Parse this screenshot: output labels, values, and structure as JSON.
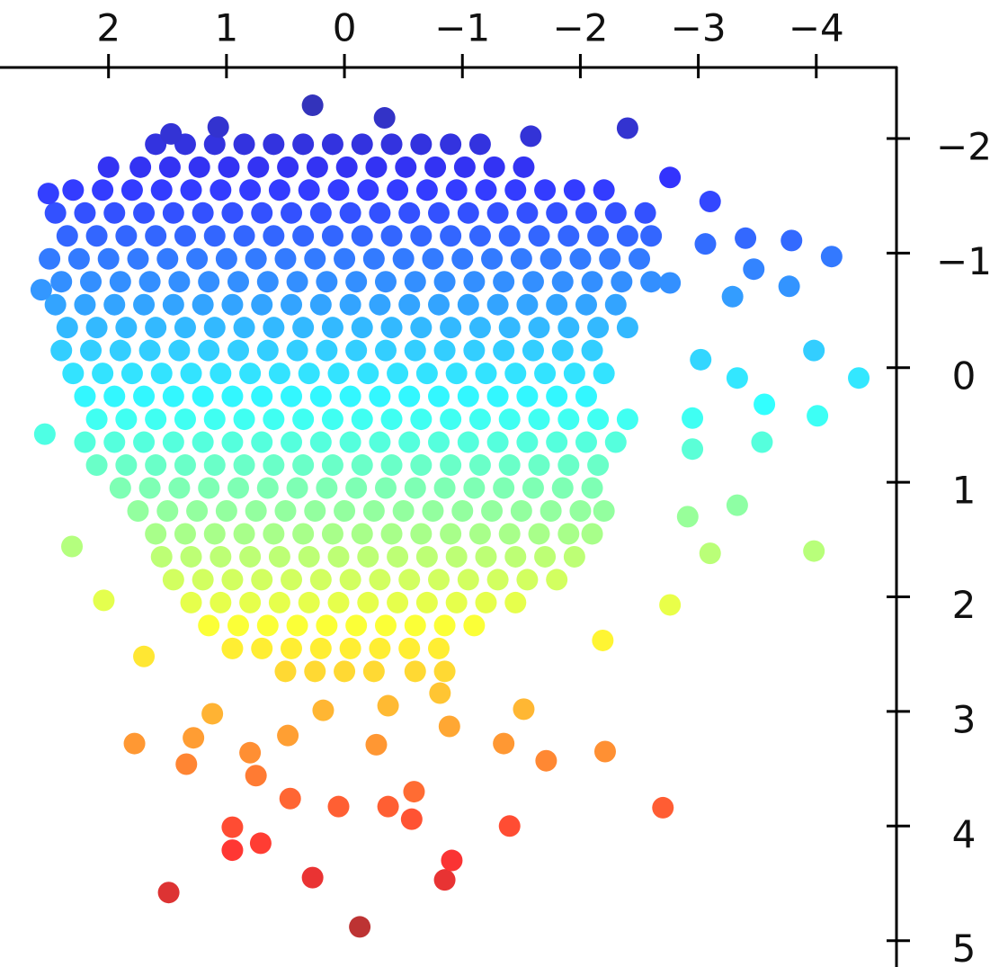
{
  "chart_data": {
    "type": "scatter",
    "colormap": "jet",
    "xlim": [
      2.92,
      -4.68
    ],
    "ylim": [
      -2.62,
      5.23
    ],
    "xticks": [
      {
        "value": 2,
        "label": "2"
      },
      {
        "value": 1,
        "label": "1"
      },
      {
        "value": 0,
        "label": "0"
      },
      {
        "value": -1,
        "label": "−1"
      },
      {
        "value": -2,
        "label": "−2"
      },
      {
        "value": -3,
        "label": "−3"
      },
      {
        "value": -4,
        "label": "−4"
      }
    ],
    "yticks": [
      {
        "value": -2,
        "label": "−2"
      },
      {
        "value": -1,
        "label": "−1"
      },
      0,
      1,
      2,
      3,
      4,
      5
    ],
    "x": [
      1.6,
      1.35,
      1.1,
      0.85,
      0.6,
      0.35,
      0.1,
      -0.15,
      -0.4,
      -0.65,
      -0.9,
      -1.15,
      2.0,
      1.73,
      1.48,
      1.23,
      0.98,
      0.73,
      0.48,
      0.23,
      -0.02,
      -0.27,
      -0.52,
      -0.77,
      -1.02,
      -1.27,
      -1.52,
      2.3,
      2.05,
      1.8,
      1.55,
      1.3,
      1.05,
      0.8,
      0.55,
      0.3,
      0.05,
      -0.2,
      -0.45,
      -0.7,
      -0.95,
      -1.2,
      -1.45,
      -1.7,
      -1.95,
      -2.2,
      2.45,
      2.2,
      1.95,
      1.7,
      1.45,
      1.2,
      0.95,
      0.7,
      0.45,
      0.2,
      -0.05,
      -0.3,
      -0.55,
      -0.8,
      -1.05,
      -1.3,
      -1.55,
      -1.8,
      -2.05,
      -2.3,
      -2.55,
      2.35,
      2.1,
      1.85,
      1.6,
      1.35,
      1.1,
      0.85,
      0.6,
      0.35,
      0.1,
      -0.15,
      -0.4,
      -0.65,
      -0.9,
      -1.15,
      -1.4,
      -1.65,
      -1.9,
      -2.15,
      -2.4,
      -2.6,
      2.5,
      2.25,
      2.0,
      1.75,
      1.5,
      1.25,
      1.0,
      0.75,
      0.5,
      0.25,
      0,
      -0.25,
      -0.5,
      -0.75,
      -1.0,
      -1.25,
      -1.5,
      -1.75,
      -2.0,
      -2.25,
      -2.5,
      2.4,
      2.15,
      1.9,
      1.65,
      1.4,
      1.15,
      0.9,
      0.65,
      0.4,
      0.15,
      -0.1,
      -0.35,
      -0.6,
      -0.85,
      -1.1,
      -1.35,
      -1.6,
      -1.85,
      -2.1,
      -2.35,
      -2.6,
      2.45,
      2.2,
      1.95,
      1.7,
      1.45,
      1.2,
      0.95,
      0.7,
      0.45,
      0.2,
      -0.05,
      -0.3,
      -0.55,
      -0.8,
      -1.05,
      -1.3,
      -1.55,
      -1.8,
      -2.05,
      -2.3,
      2.35,
      2.1,
      1.85,
      1.6,
      1.35,
      1.1,
      0.85,
      0.6,
      0.35,
      0.1,
      -0.15,
      -0.4,
      -0.65,
      -0.9,
      -1.15,
      -1.4,
      -1.65,
      -1.9,
      -2.15,
      -2.4,
      2.4,
      2.15,
      1.9,
      1.65,
      1.4,
      1.15,
      0.9,
      0.65,
      0.4,
      0.15,
      -0.1,
      -0.35,
      -0.6,
      -0.85,
      -1.1,
      -1.35,
      -1.6,
      -1.85,
      -2.1,
      2.3,
      2.05,
      1.8,
      1.55,
      1.3,
      1.05,
      0.8,
      0.55,
      0.3,
      0.05,
      -0.2,
      -0.45,
      -0.7,
      -0.95,
      -1.2,
      -1.45,
      -1.7,
      -1.95,
      -2.2,
      2.2,
      1.95,
      1.7,
      1.45,
      1.2,
      0.95,
      0.7,
      0.45,
      0.2,
      -0.05,
      -0.3,
      -0.55,
      -0.8,
      -1.05,
      -1.3,
      -1.55,
      -1.8,
      -2.05,
      2.1,
      1.85,
      1.6,
      1.35,
      1.1,
      0.85,
      0.6,
      0.35,
      0.1,
      -0.15,
      -0.4,
      -0.65,
      -0.9,
      -1.15,
      -1.4,
      -1.65,
      -1.9,
      -2.15,
      -2.4,
      2.2,
      1.95,
      1.7,
      1.45,
      1.2,
      0.95,
      0.7,
      0.45,
      0.2,
      -0.05,
      -0.3,
      -0.55,
      -0.8,
      -1.05,
      -1.3,
      -1.55,
      -1.8,
      -2.05,
      -2.3,
      2.1,
      1.85,
      1.6,
      1.35,
      1.1,
      0.85,
      0.6,
      0.35,
      0.1,
      -0.15,
      -0.4,
      -0.65,
      -0.9,
      -1.15,
      -1.4,
      -1.65,
      -1.9,
      -2.15,
      1.9,
      1.65,
      1.4,
      1.15,
      0.9,
      0.65,
      0.4,
      0.15,
      -0.1,
      -0.35,
      -0.6,
      -0.85,
      -1.1,
      -1.35,
      -1.6,
      -1.85,
      -2.1,
      1.75,
      1.5,
      1.25,
      1.0,
      0.75,
      0.5,
      0.25,
      0,
      -0.25,
      -0.5,
      -0.75,
      -1.0,
      -1.25,
      -1.5,
      -1.75,
      -2.0,
      -2.2,
      1.6,
      1.35,
      1.1,
      0.85,
      0.6,
      0.35,
      0.1,
      -0.15,
      -0.4,
      -0.65,
      -0.9,
      -1.15,
      -1.4,
      -1.65,
      -1.9,
      -2.1,
      1.55,
      1.3,
      1.05,
      0.8,
      0.55,
      0.3,
      0.05,
      -0.2,
      -0.45,
      -0.7,
      -0.95,
      -1.2,
      -1.45,
      -1.7,
      -1.95,
      1.45,
      1.2,
      0.95,
      0.7,
      0.45,
      0.2,
      -0.05,
      -0.3,
      -0.55,
      -0.8,
      -1.05,
      -1.3,
      -1.55,
      -1.8,
      1.3,
      1.05,
      0.8,
      0.55,
      0.3,
      0.05,
      -0.2,
      -0.45,
      -0.7,
      -0.95,
      -1.2,
      -1.45,
      1.15,
      0.9,
      0.65,
      0.4,
      0.15,
      -0.1,
      -0.35,
      -0.6,
      -0.85,
      -1.1,
      0.95,
      0.7,
      0.45,
      0.2,
      -0.05,
      -0.3,
      -0.55,
      -0.8,
      0.5,
      0.25,
      0,
      -0.25,
      -0.6,
      -0.85,
      0.27,
      1.07,
      1.47,
      -0.34,
      -2.4,
      -1.58,
      2.51,
      2.57,
      -2.76,
      -3.1,
      -3.06,
      -3.4,
      -3.79,
      -4.13,
      -3.77,
      -3.47,
      -3.29,
      -2.76,
      -3.98,
      -4.36,
      -4.01,
      -3.56,
      -3.54,
      -3.33,
      -3.02,
      -2.95,
      -2.95,
      -3.33,
      -2.91,
      -3.1,
      -3.98,
      -2.76,
      2.54,
      2.31,
      2.04,
      1.7,
      -2.19,
      1.78,
      1.34,
      1.12,
      1.28,
      0.8,
      0.75,
      0.46,
      0.05,
      -0.37,
      -0.59,
      -0.57,
      -1.4,
      -2.7,
      -2.21,
      -1.71,
      -1.35,
      -1.52,
      -0.89,
      -0.27,
      0.48,
      0.95,
      0.95,
      0.71,
      1.49,
      0.27,
      -0.85,
      -0.91,
      -0.13,
      0.18,
      -0.37,
      -0.81
    ],
    "values": [
      -1.95,
      -1.95,
      -1.95,
      -1.95,
      -1.95,
      -1.95,
      -1.95,
      -1.95,
      -1.95,
      -1.95,
      -1.95,
      -1.95,
      -1.75,
      -1.75,
      -1.75,
      -1.75,
      -1.75,
      -1.75,
      -1.75,
      -1.75,
      -1.75,
      -1.75,
      -1.75,
      -1.75,
      -1.75,
      -1.75,
      -1.75,
      -1.55,
      -1.55,
      -1.55,
      -1.55,
      -1.55,
      -1.55,
      -1.55,
      -1.55,
      -1.55,
      -1.55,
      -1.55,
      -1.55,
      -1.55,
      -1.55,
      -1.55,
      -1.55,
      -1.55,
      -1.55,
      -1.55,
      -1.35,
      -1.35,
      -1.35,
      -1.35,
      -1.35,
      -1.35,
      -1.35,
      -1.35,
      -1.35,
      -1.35,
      -1.35,
      -1.35,
      -1.35,
      -1.35,
      -1.35,
      -1.35,
      -1.35,
      -1.35,
      -1.35,
      -1.35,
      -1.35,
      -1.15,
      -1.15,
      -1.15,
      -1.15,
      -1.15,
      -1.15,
      -1.15,
      -1.15,
      -1.15,
      -1.15,
      -1.15,
      -1.15,
      -1.15,
      -1.15,
      -1.15,
      -1.15,
      -1.15,
      -1.15,
      -1.15,
      -1.15,
      -1.15,
      -0.95,
      -0.95,
      -0.95,
      -0.95,
      -0.95,
      -0.95,
      -0.95,
      -0.95,
      -0.95,
      -0.95,
      -0.95,
      -0.95,
      -0.95,
      -0.95,
      -0.95,
      -0.95,
      -0.95,
      -0.95,
      -0.95,
      -0.95,
      -0.95,
      -0.75,
      -0.75,
      -0.75,
      -0.75,
      -0.75,
      -0.75,
      -0.75,
      -0.75,
      -0.75,
      -0.75,
      -0.75,
      -0.75,
      -0.75,
      -0.75,
      -0.75,
      -0.75,
      -0.75,
      -0.75,
      -0.75,
      -0.75,
      -0.75,
      -0.55,
      -0.55,
      -0.55,
      -0.55,
      -0.55,
      -0.55,
      -0.55,
      -0.55,
      -0.55,
      -0.55,
      -0.55,
      -0.55,
      -0.55,
      -0.55,
      -0.55,
      -0.55,
      -0.55,
      -0.55,
      -0.55,
      -0.55,
      -0.35,
      -0.35,
      -0.35,
      -0.35,
      -0.35,
      -0.35,
      -0.35,
      -0.35,
      -0.35,
      -0.35,
      -0.35,
      -0.35,
      -0.35,
      -0.35,
      -0.35,
      -0.35,
      -0.35,
      -0.35,
      -0.35,
      -0.35,
      -0.15,
      -0.15,
      -0.15,
      -0.15,
      -0.15,
      -0.15,
      -0.15,
      -0.15,
      -0.15,
      -0.15,
      -0.15,
      -0.15,
      -0.15,
      -0.15,
      -0.15,
      -0.15,
      -0.15,
      -0.15,
      -0.15,
      0.05,
      0.05,
      0.05,
      0.05,
      0.05,
      0.05,
      0.05,
      0.05,
      0.05,
      0.05,
      0.05,
      0.05,
      0.05,
      0.05,
      0.05,
      0.05,
      0.05,
      0.05,
      0.05,
      0.25,
      0.25,
      0.25,
      0.25,
      0.25,
      0.25,
      0.25,
      0.25,
      0.25,
      0.25,
      0.25,
      0.25,
      0.25,
      0.25,
      0.25,
      0.25,
      0.25,
      0.25,
      0.45,
      0.45,
      0.45,
      0.45,
      0.45,
      0.45,
      0.45,
      0.45,
      0.45,
      0.45,
      0.45,
      0.45,
      0.45,
      0.45,
      0.45,
      0.45,
      0.45,
      0.45,
      0.45,
      0.65,
      0.65,
      0.65,
      0.65,
      0.65,
      0.65,
      0.65,
      0.65,
      0.65,
      0.65,
      0.65,
      0.65,
      0.65,
      0.65,
      0.65,
      0.65,
      0.65,
      0.65,
      0.65,
      0.85,
      0.85,
      0.85,
      0.85,
      0.85,
      0.85,
      0.85,
      0.85,
      0.85,
      0.85,
      0.85,
      0.85,
      0.85,
      0.85,
      0.85,
      0.85,
      0.85,
      0.85,
      1.05,
      1.05,
      1.05,
      1.05,
      1.05,
      1.05,
      1.05,
      1.05,
      1.05,
      1.05,
      1.05,
      1.05,
      1.05,
      1.05,
      1.05,
      1.05,
      1.05,
      1.25,
      1.25,
      1.25,
      1.25,
      1.25,
      1.25,
      1.25,
      1.25,
      1.25,
      1.25,
      1.25,
      1.25,
      1.25,
      1.25,
      1.25,
      1.25,
      1.25,
      1.45,
      1.45,
      1.45,
      1.45,
      1.45,
      1.45,
      1.45,
      1.45,
      1.45,
      1.45,
      1.45,
      1.45,
      1.45,
      1.45,
      1.45,
      1.45,
      1.65,
      1.65,
      1.65,
      1.65,
      1.65,
      1.65,
      1.65,
      1.65,
      1.65,
      1.65,
      1.65,
      1.65,
      1.65,
      1.65,
      1.65,
      1.85,
      1.85,
      1.85,
      1.85,
      1.85,
      1.85,
      1.85,
      1.85,
      1.85,
      1.85,
      1.85,
      1.85,
      1.85,
      1.85,
      2.05,
      2.05,
      2.05,
      2.05,
      2.05,
      2.05,
      2.05,
      2.05,
      2.05,
      2.05,
      2.05,
      2.05,
      2.25,
      2.25,
      2.25,
      2.25,
      2.25,
      2.25,
      2.25,
      2.25,
      2.25,
      2.25,
      2.45,
      2.45,
      2.45,
      2.45,
      2.45,
      2.45,
      2.45,
      2.45,
      2.65,
      2.65,
      2.65,
      2.65,
      2.65,
      2.65,
      -2.29,
      -2.1,
      -2.04,
      -2.18,
      -2.09,
      -2.02,
      -1.52,
      -0.68,
      -1.66,
      -1.45,
      -1.08,
      -1.13,
      -1.11,
      -0.97,
      -0.71,
      -0.86,
      -0.62,
      -0.74,
      -0.15,
      0.09,
      0.42,
      0.32,
      0.65,
      0.09,
      -0.07,
      0.44,
      0.71,
      1.2,
      1.3,
      1.62,
      1.6,
      2.07,
      0.58,
      1.56,
      2.03,
      2.52,
      2.38,
      3.28,
      3.46,
      3.02,
      3.23,
      3.36,
      3.56,
      3.76,
      3.83,
      3.83,
      3.7,
      3.94,
      4.0,
      3.84,
      3.35,
      3.43,
      3.28,
      2.98,
      3.13,
      3.29,
      3.21,
      4.01,
      4.21,
      4.15,
      4.58,
      4.45,
      4.47,
      4.3,
      4.88,
      2.99,
      2.95,
      2.84
    ]
  }
}
